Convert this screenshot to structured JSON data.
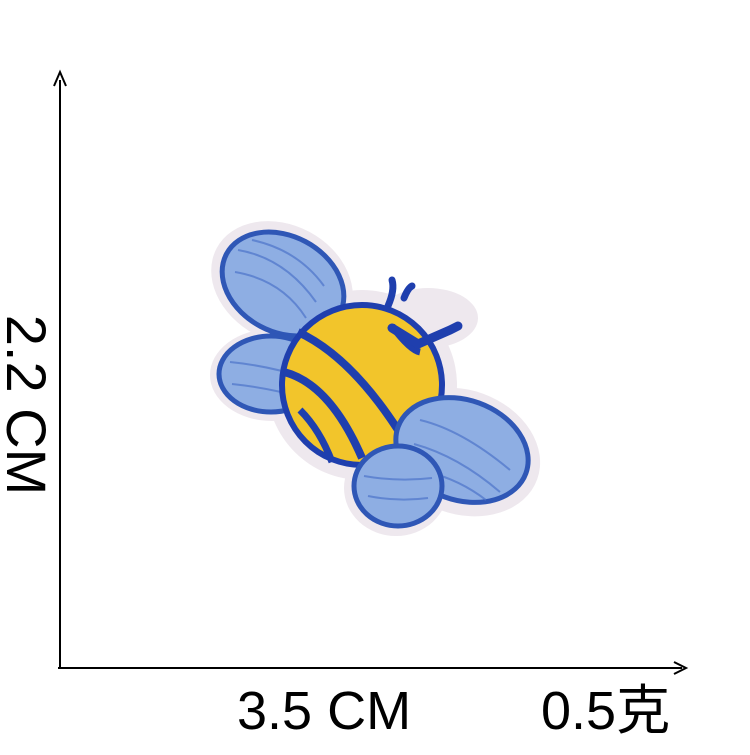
{
  "dimensions": {
    "height": "2.2 CM",
    "width": "3.5 CM",
    "weight": "0.5克"
  },
  "colors": {
    "felt_border": "#efe9ef",
    "wing_blue": "#8eaee3",
    "wing_stitch": "#2f57b6",
    "body_yellow": "#f2c52b",
    "stripe_blue": "#1f3fae",
    "axis": "#000000"
  },
  "image": {
    "subject": "bee-embroidered-patch"
  }
}
